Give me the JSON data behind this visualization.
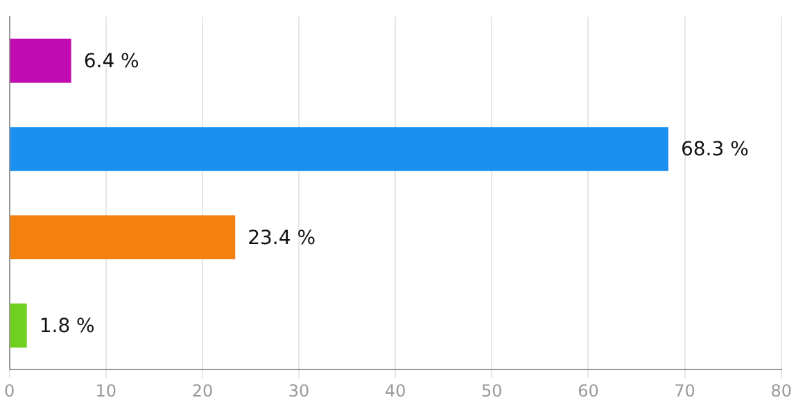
{
  "chart_data": {
    "type": "bar",
    "orientation": "horizontal",
    "categories": [
      null,
      null,
      null,
      null
    ],
    "values": [
      6.4,
      68.3,
      23.4,
      1.8
    ],
    "colors": [
      "#c00cb0",
      "#1a90f0",
      "#f48010",
      "#70d020"
    ],
    "value_labels": [
      "6.4 %",
      "68.3 %",
      "23.4 %",
      "1.8 %"
    ],
    "xlim": [
      0,
      80
    ],
    "xticks": [
      0,
      10,
      20,
      30,
      40,
      50,
      60,
      70,
      80
    ],
    "grid": "x"
  }
}
